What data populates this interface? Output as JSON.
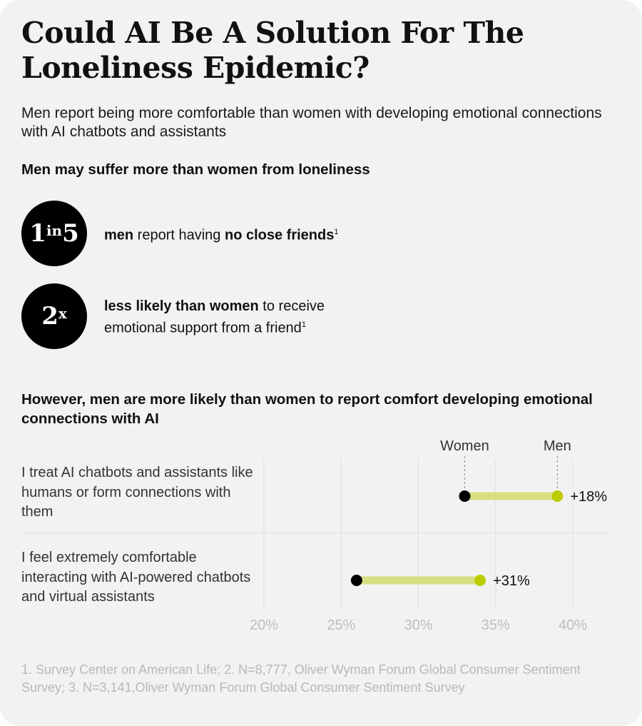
{
  "title": "Could AI Be A Solution For The Loneliness Epidemic?",
  "subtitle": "Men report being more comfortable than women with developing emotional connections with AI chatbots and assistants",
  "section1": {
    "heading": "Men may suffer more than women from loneliness",
    "stats": [
      {
        "num_main": "1",
        "num_sup": "in",
        "num_tail": "5",
        "bold1": "men",
        "text1": " report having ",
        "bold2": "no close friends",
        "note": "1"
      },
      {
        "num_main": "2",
        "num_sup": "x",
        "num_tail": "",
        "bold1": "less likely than women",
        "text1": " to receive emotional support from a friend",
        "bold2": "",
        "note": "1"
      }
    ]
  },
  "section2": {
    "heading": "However, men are more likely than women to report comfort developing emotional connections with AI"
  },
  "colors": {
    "women": "#000000",
    "men": "#bccc00",
    "bar": "#d6df82",
    "grid": "#dddddd",
    "tick": "#bdbdbd"
  },
  "chart_data": {
    "type": "dumbbell",
    "legend": {
      "women": "Women",
      "men": "Men"
    },
    "xlim": [
      20,
      42
    ],
    "xticks": [
      20,
      25,
      30,
      35,
      40
    ],
    "tick_labels": [
      "20%",
      "25%",
      "30%",
      "35%",
      "40%"
    ],
    "rows": [
      {
        "label": "I treat AI chatbots and assistants like humans or form connections with them",
        "women": 33,
        "men": 39,
        "diff": "+18%"
      },
      {
        "label": "I feel extremely comfortable interacting with AI-powered chatbots and virtual assistants",
        "women": 26,
        "men": 34,
        "diff": "+31%"
      }
    ]
  },
  "footnote": "1. Survey Center on American Life; 2. N=8,777, Oliver Wyman Forum Global Consumer Sentiment Survey; 3. N=3,141,Oliver Wyman Forum Global Consumer Sentiment Survey"
}
